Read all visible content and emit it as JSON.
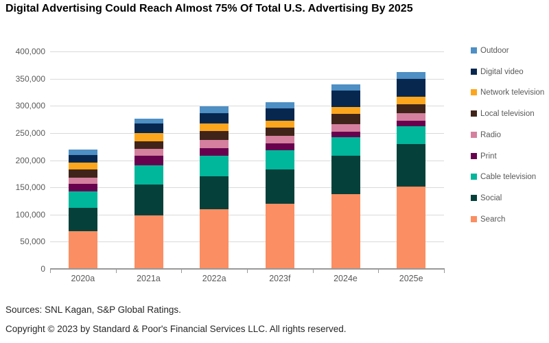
{
  "title": "Digital Advertising Could Reach Almost 75% Of Total U.S. Advertising By 2025",
  "footer": {
    "sources": "Sources: SNL Kagan, S&P Global Ratings.",
    "copyright": "Copyright © 2023 by Standard & Poor's Financial Services LLC. All rights reserved."
  },
  "style_colors": {
    "grid": "#d9d9d9",
    "axis": "#989898",
    "axis_text": "#595959",
    "legend_text": "#595959",
    "title_text": "#000000",
    "footer_text": "#262626"
  },
  "chart_data": {
    "type": "bar",
    "stacked": true,
    "title": "Digital Advertising Could Reach Almost 75% Of Total U.S. Advertising By 2025",
    "xlabel": "",
    "ylabel": "",
    "ylim": [
      0,
      400000
    ],
    "grid": true,
    "legend_position": "right",
    "legend_order_top_to_bottom": [
      "Outdoor",
      "Digital video",
      "Network television",
      "Local television",
      "Radio",
      "Print",
      "Cable television",
      "Social",
      "Search"
    ],
    "categories": [
      "2020a",
      "2021a",
      "2022a",
      "2023f",
      "2024e",
      "2025e"
    ],
    "y_ticks": [
      {
        "value": 0,
        "label": "0"
      },
      {
        "value": 50000,
        "label": "50,000"
      },
      {
        "value": 100000,
        "label": "100,000"
      },
      {
        "value": 150000,
        "label": "150,000"
      },
      {
        "value": 200000,
        "label": "200,000"
      },
      {
        "value": 250000,
        "label": "250,000"
      },
      {
        "value": 300000,
        "label": "300,000"
      },
      {
        "value": 350000,
        "label": "350,000"
      },
      {
        "value": 400000,
        "label": "400,000"
      }
    ],
    "series": [
      {
        "name": "Search",
        "color": "#fb8e62",
        "values": [
          69000,
          99000,
          110000,
          120000,
          137000,
          152000
        ]
      },
      {
        "name": "Social",
        "color": "#05403a",
        "values": [
          43000,
          56000,
          60000,
          63000,
          71000,
          78000
        ]
      },
      {
        "name": "Cable television",
        "color": "#00b69b",
        "values": [
          31000,
          36000,
          38000,
          35000,
          34000,
          33000
        ]
      },
      {
        "name": "Print",
        "color": "#68024f",
        "values": [
          14000,
          17000,
          14000,
          13000,
          11000,
          10000
        ]
      },
      {
        "name": "Radio",
        "color": "#d5809e",
        "values": [
          11000,
          13000,
          15000,
          14000,
          13000,
          13000
        ]
      },
      {
        "name": "Local television",
        "color": "#40241a",
        "values": [
          15000,
          14000,
          17000,
          15000,
          19000,
          17000
        ]
      },
      {
        "name": "Network television",
        "color": "#fca61e",
        "values": [
          13000,
          15000,
          13000,
          13000,
          13000,
          14000
        ]
      },
      {
        "name": "Digital video",
        "color": "#07274f",
        "values": [
          14000,
          18000,
          19000,
          22000,
          30000,
          32000
        ]
      },
      {
        "name": "Outdoor",
        "color": "#4e8fc4",
        "values": [
          9000,
          9000,
          13000,
          12000,
          11000,
          13000
        ]
      }
    ],
    "totals": [
      219000,
      277000,
      299000,
      307000,
      339000,
      362000
    ]
  }
}
